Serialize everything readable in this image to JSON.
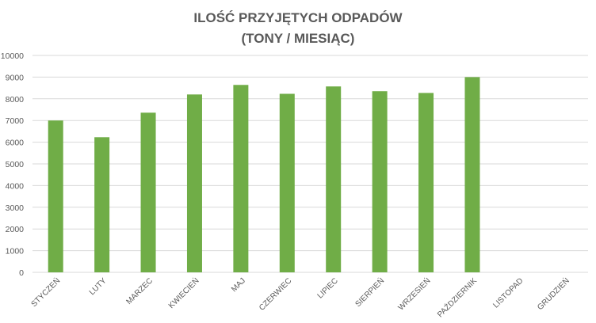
{
  "chart_data": {
    "type": "bar",
    "title_lines": [
      "ILOŚĆ PRZYJĘTYCH ODPADÓW",
      "(TONY / MIESIĄC)"
    ],
    "categories": [
      "STYCZEŃ",
      "LUTY",
      "MARZEC",
      "KWIECIEŃ",
      "MAJ",
      "CZERWIEC",
      "LIPIEC",
      "SIERPIEŃ",
      "WRZESIEŃ",
      "PAŹDZIERNIK",
      "LISTOPAD",
      "GRUDZIEŃ"
    ],
    "values": [
      7000,
      6230,
      7360,
      8200,
      8640,
      8230,
      8570,
      8350,
      8270,
      9000,
      null,
      null
    ],
    "ylim": [
      0,
      10000
    ],
    "yticks": [
      "0",
      "1000",
      "2000",
      "3000",
      "4000",
      "5000",
      "6000",
      "7000",
      "8000",
      "9000",
      "10000"
    ],
    "grid": true,
    "legend": "none",
    "colors": {
      "bar": "#70AD47",
      "grid": "#D9D9D9",
      "text": "#595959"
    }
  }
}
